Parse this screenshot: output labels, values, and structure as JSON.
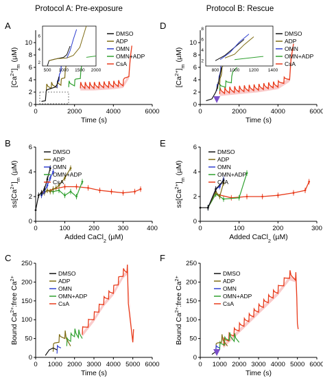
{
  "figure": {
    "header_left": "Protocol A: Pre-exposure",
    "header_right": "Protocol B: Rescue"
  },
  "colors": {
    "DMSO": "#111111",
    "ADP": "#7d6a12",
    "OMN": "#2f3fd0",
    "OMN+ADP": "#2fa02f",
    "CsA": "#e83a1a",
    "CsA_band": "#f6a8a8",
    "arrow": "#7b4fc9"
  },
  "legend_items": [
    "DMSO",
    "ADP",
    "OMN",
    "OMN+ADP",
    "CsA"
  ],
  "chart_data": [
    {
      "panel": "A",
      "type": "line",
      "xlabel": "Time (s)",
      "ylabel": "[Ca2+]m (µM)",
      "xlim": [
        0,
        6000
      ],
      "ylim": [
        0,
        12
      ],
      "xticks": [
        0,
        2000,
        4000,
        6000
      ],
      "yticks": [
        0,
        2,
        4,
        6,
        8,
        10
      ],
      "legend": "top-right",
      "series": [
        {
          "name": "DMSO",
          "x": [
            300,
            500,
            550,
            700,
            900,
            1000,
            1100,
            1200
          ],
          "y": [
            0.5,
            0.6,
            2.3,
            2.5,
            2.7,
            2.8,
            3.2,
            4.5
          ]
        },
        {
          "name": "ADP",
          "x": [
            550,
            800,
            1100,
            1300,
            1500,
            1700
          ],
          "y": [
            2.3,
            2.6,
            2.7,
            3.1,
            4.3,
            7.5
          ]
        },
        {
          "name": "OMN",
          "x": [
            1100,
            1200,
            1300,
            1400
          ],
          "y": [
            2.7,
            3.8,
            5.5,
            7.0
          ]
        },
        {
          "name": "OMN+ADP",
          "x": [
            1700,
            2000,
            2300,
            2600
          ],
          "y": [
            2.8,
            3.0,
            4.2,
            7.5
          ]
        },
        {
          "name": "CsA",
          "x": [
            2300,
            3000,
            3500,
            4000,
            4500,
            4800,
            4950
          ],
          "y": [
            2.6,
            2.6,
            2.7,
            2.8,
            3.0,
            4.5,
            9.5
          ]
        }
      ],
      "inset": {
        "xticks": [
          500,
          1000,
          1500,
          2000
        ],
        "yticks": [
          2,
          4,
          6
        ],
        "xlim": [
          350,
          2000
        ],
        "ylim": [
          1.5,
          7.5
        ]
      }
    },
    {
      "panel": "B",
      "type": "line",
      "xlabel": "Added CaCl2 (µM)",
      "ylabel": "ss[Ca2+]m (µM)",
      "xlim": [
        0,
        400
      ],
      "ylim": [
        0,
        6
      ],
      "xticks": [
        0,
        100,
        200,
        300,
        400
      ],
      "yticks": [
        0,
        2,
        4,
        6
      ],
      "legend": "top-left",
      "series": [
        {
          "name": "DMSO",
          "x": [
            0,
            10,
            20,
            30,
            40,
            50
          ],
          "y": [
            0.9,
            2.1,
            2.3,
            2.6,
            3.4,
            4.3
          ]
        },
        {
          "name": "ADP",
          "x": [
            20,
            30,
            40,
            50,
            60,
            70,
            80,
            100,
            120
          ],
          "y": [
            2.1,
            2.3,
            2.5,
            2.4,
            2.6,
            2.7,
            2.9,
            3.5,
            4.3
          ]
        },
        {
          "name": "OMN",
          "x": [
            20,
            30,
            40,
            50,
            60
          ],
          "y": [
            2.1,
            2.4,
            2.9,
            3.5,
            4.0
          ]
        },
        {
          "name": "OMN+ADP",
          "x": [
            20,
            40,
            60,
            80,
            100,
            120,
            140,
            160
          ],
          "y": [
            2.2,
            2.5,
            2.4,
            2.5,
            2.1,
            2.4,
            2.0,
            3.2
          ]
        },
        {
          "name": "CsA",
          "x": [
            20,
            60,
            100,
            140,
            180,
            220,
            260,
            300,
            340,
            360
          ],
          "y": [
            2.3,
            2.6,
            2.8,
            2.8,
            2.7,
            2.5,
            2.4,
            2.3,
            2.4,
            2.6
          ]
        }
      ]
    },
    {
      "panel": "C",
      "type": "line",
      "xlabel": "Time (s)",
      "ylabel": "Bound Ca2+:free Ca2+",
      "xlim": [
        0,
        6000
      ],
      "ylim": [
        0,
        250
      ],
      "xticks": [
        0,
        1000,
        2000,
        3000,
        4000,
        5000,
        6000
      ],
      "yticks": [
        0,
        50,
        100,
        150,
        200,
        250
      ],
      "legend": "top-left",
      "series": [
        {
          "name": "DMSO",
          "x": [
            500,
            700,
            900,
            1100
          ],
          "y": [
            5,
            20,
            25,
            20
          ]
        },
        {
          "name": "ADP",
          "x": [
            900,
            1200,
            1500,
            1800
          ],
          "y": [
            15,
            40,
            50,
            30
          ]
        },
        {
          "name": "OMN",
          "x": [
            1100,
            1300
          ],
          "y": [
            10,
            25
          ]
        },
        {
          "name": "OMN+ADP",
          "x": [
            1600,
            2000,
            2400
          ],
          "y": [
            30,
            55,
            50
          ]
        },
        {
          "name": "CsA",
          "x": [
            2400,
            3000,
            3500,
            4000,
            4500,
            4700,
            5000
          ],
          "y": [
            60,
            100,
            140,
            170,
            215,
            225,
            40
          ]
        }
      ]
    },
    {
      "panel": "D",
      "type": "line",
      "xlabel": "Time (s)",
      "ylabel": "[Ca2+]m (µM)",
      "xlim": [
        0,
        6000
      ],
      "ylim": [
        0,
        12
      ],
      "xticks": [
        0,
        2000,
        4000,
        6000
      ],
      "yticks": [
        0,
        2,
        4,
        6,
        8,
        10
      ],
      "legend": "top-right",
      "series": [
        {
          "name": "DMSO",
          "x": [
            300,
            600,
            800,
            900,
            1000,
            1100
          ],
          "y": [
            0.6,
            0.9,
            2.0,
            3.0,
            4.5,
            6.0
          ]
        },
        {
          "name": "ADP",
          "x": [
            900,
            1000,
            1100,
            1200
          ],
          "y": [
            2.5,
            3.2,
            5.0,
            6.5
          ]
        },
        {
          "name": "OMN",
          "x": [
            850,
            950,
            1050,
            1150
          ],
          "y": [
            2.2,
            3.5,
            5.5,
            7.0
          ]
        },
        {
          "name": "OMN+ADP",
          "x": [
            1000,
            1300,
            1600,
            1900
          ],
          "y": [
            2.2,
            2.8,
            3.5,
            6.0
          ]
        },
        {
          "name": "CsA",
          "x": [
            1000,
            2000,
            3000,
            4000,
            4600,
            4800
          ],
          "y": [
            1.7,
            2.0,
            2.3,
            2.8,
            4.0,
            9.8
          ]
        }
      ],
      "inset": {
        "xticks": [
          800,
          1000,
          1200,
          1400
        ],
        "yticks": [
          2,
          4,
          6,
          8
        ],
        "xlim": [
          700,
          1400
        ],
        "ylim": [
          1.0,
          8.5
        ]
      }
    },
    {
      "panel": "E",
      "type": "line",
      "xlabel": "Added CaCl2 (µM)",
      "ylabel": "ss[Ca2+]m (µM)",
      "xlim": [
        0,
        300
      ],
      "ylim": [
        0,
        6
      ],
      "xticks": [
        0,
        100,
        200,
        300
      ],
      "yticks": [
        0,
        2,
        4,
        6
      ],
      "legend": "top-left",
      "series": [
        {
          "name": "DMSO",
          "x": [
            0,
            20,
            40,
            60
          ],
          "y": [
            1.1,
            1.1,
            2.6,
            3.3
          ]
        },
        {
          "name": "ADP",
          "x": [
            20,
            40,
            50,
            60
          ],
          "y": [
            1.1,
            2.4,
            2.0,
            3.1
          ]
        },
        {
          "name": "OMN",
          "x": [
            20,
            40,
            50,
            60
          ],
          "y": [
            1.1,
            2.6,
            2.8,
            3.4
          ]
        },
        {
          "name": "OMN+ADP",
          "x": [
            20,
            40,
            60,
            100,
            120
          ],
          "y": [
            1.1,
            2.2,
            1.8,
            1.9,
            3.9
          ]
        },
        {
          "name": "CsA",
          "x": [
            40,
            80,
            120,
            160,
            200,
            240,
            270,
            280
          ],
          "y": [
            2.2,
            1.9,
            2.0,
            2.0,
            2.1,
            2.3,
            2.5,
            3.2
          ]
        }
      ]
    },
    {
      "panel": "F",
      "type": "line",
      "xlabel": "Time (s)",
      "ylabel": "Bound Ca2+:free Ca2+",
      "xlim": [
        0,
        6000
      ],
      "ylim": [
        0,
        250
      ],
      "xticks": [
        0,
        1000,
        2000,
        3000,
        4000,
        5000,
        6000
      ],
      "yticks": [
        0,
        50,
        100,
        150,
        200,
        250
      ],
      "legend": "top-left",
      "series": [
        {
          "name": "DMSO",
          "x": [
            600,
            800,
            1000
          ],
          "y": [
            8,
            15,
            20
          ]
        },
        {
          "name": "ADP",
          "x": [
            800,
            1100,
            1400
          ],
          "y": [
            15,
            40,
            30
          ]
        },
        {
          "name": "OMN",
          "x": [
            800,
            1000
          ],
          "y": [
            10,
            25
          ]
        },
        {
          "name": "OMN+ADP",
          "x": [
            1000,
            1500,
            2000
          ],
          "y": [
            20,
            45,
            40
          ]
        },
        {
          "name": "CsA",
          "x": [
            1200,
            2000,
            3000,
            4000,
            4600,
            4900,
            5000
          ],
          "y": [
            30,
            70,
            120,
            170,
            210,
            205,
            90
          ]
        }
      ]
    }
  ]
}
